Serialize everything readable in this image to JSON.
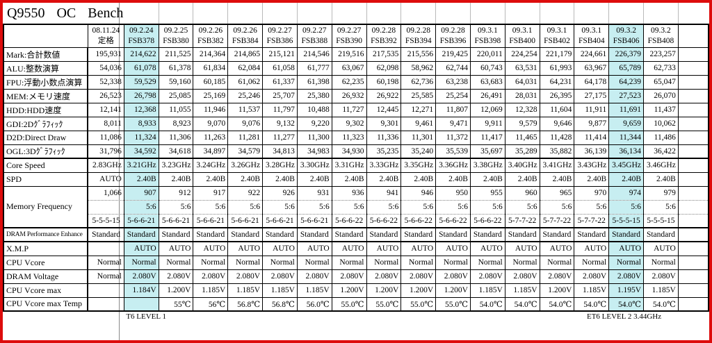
{
  "title": "Q9550 OC Bench",
  "colors": {
    "highlight": "#c7eef1",
    "frame_red": "#dd0c0c",
    "pane_line": "#8a8a8a"
  },
  "highlight_columns": [
    1,
    15
  ],
  "columns": [
    {
      "date": "08.11.24",
      "label": "定格",
      "highlight": false
    },
    {
      "date": "09.2.24",
      "label": "FSB378",
      "highlight": true
    },
    {
      "date": "09.2.25",
      "label": "FSB380",
      "highlight": false
    },
    {
      "date": "09.2.26",
      "label": "FSB382",
      "highlight": false
    },
    {
      "date": "09.2.26",
      "label": "FSB384",
      "highlight": false
    },
    {
      "date": "09.2.27",
      "label": "FSB386",
      "highlight": false
    },
    {
      "date": "09.2.27",
      "label": "FSB388",
      "highlight": false
    },
    {
      "date": "09.2.27",
      "label": "FSB390",
      "highlight": false
    },
    {
      "date": "09.2.28",
      "label": "FSB392",
      "highlight": false
    },
    {
      "date": "09.2.28",
      "label": "FSB394",
      "highlight": false
    },
    {
      "date": "09.2.28",
      "label": "FSB396",
      "highlight": false
    },
    {
      "date": "09.3.1",
      "label": "FSB398",
      "highlight": false
    },
    {
      "date": "09.3.1",
      "label": "FSB400",
      "highlight": false
    },
    {
      "date": "09.3.1",
      "label": "FSB402",
      "highlight": false
    },
    {
      "date": "09.3.1",
      "label": "FSB404",
      "highlight": false
    },
    {
      "date": "09.3.2",
      "label": "FSB406",
      "highlight": true
    },
    {
      "date": "09.3.2",
      "label": "FSB408",
      "highlight": false
    }
  ],
  "rows": [
    {
      "label": "Mark:合計数値",
      "values": [
        "195,931",
        "214,622",
        "211,525",
        "214,364",
        "214,865",
        "215,121",
        "214,546",
        "219,516",
        "217,535",
        "215,556",
        "219,425",
        "220,011",
        "224,254",
        "221,179",
        "224,661",
        "226,379",
        "223,257"
      ]
    },
    {
      "label": "ALU:整数演算",
      "values": [
        "54,036",
        "61,078",
        "61,378",
        "61,834",
        "62,084",
        "61,058",
        "61,777",
        "63,067",
        "62,098",
        "58,962",
        "62,744",
        "60,743",
        "63,531",
        "61,993",
        "63,967",
        "65,789",
        "62,733"
      ]
    },
    {
      "label": "FPU:浮動小数点演算",
      "values": [
        "52,338",
        "59,529",
        "59,160",
        "60,185",
        "61,062",
        "61,337",
        "61,398",
        "62,235",
        "60,198",
        "62,736",
        "63,238",
        "63,683",
        "64,031",
        "64,231",
        "64,178",
        "64,239",
        "65,047"
      ]
    },
    {
      "label": "MEM:メモリ速度",
      "values": [
        "26,523",
        "26,798",
        "25,085",
        "25,169",
        "25,246",
        "25,707",
        "25,380",
        "26,932",
        "26,922",
        "25,585",
        "25,254",
        "26,491",
        "28,031",
        "26,395",
        "27,175",
        "27,523",
        "26,070"
      ]
    },
    {
      "label": "HDD:HDD速度",
      "values": [
        "12,141",
        "12,368",
        "11,055",
        "11,946",
        "11,537",
        "11,797",
        "10,488",
        "11,727",
        "12,445",
        "12,271",
        "11,807",
        "12,069",
        "12,328",
        "11,604",
        "11,911",
        "11,691",
        "11,437"
      ]
    },
    {
      "label": "GDI:2Dｸﾞﾗﾌｨｯｸ",
      "values": [
        "8,011",
        "8,933",
        "8,923",
        "9,070",
        "9,076",
        "9,132",
        "9,220",
        "9,302",
        "9,301",
        "9,461",
        "9,471",
        "9,911",
        "9,579",
        "9,646",
        "9,877",
        "9,659",
        "10,062"
      ]
    },
    {
      "label": "D2D:Direct Draw",
      "values": [
        "11,086",
        "11,324",
        "11,306",
        "11,263",
        "11,281",
        "11,277",
        "11,300",
        "11,323",
        "11,336",
        "11,301",
        "11,372",
        "11,417",
        "11,465",
        "11,428",
        "11,414",
        "11,344",
        "11,486"
      ]
    },
    {
      "label": "OGL:3Dｸﾞﾗﾌｨｯｸ",
      "values": [
        "31,796",
        "34,592",
        "34,618",
        "34,897",
        "34,579",
        "34,813",
        "34,983",
        "34,930",
        "35,235",
        "35,240",
        "35,539",
        "35,697",
        "35,289",
        "35,882",
        "36,139",
        "36,134",
        "36,422"
      ]
    },
    {
      "label": "Core Speed",
      "thick_top": true,
      "values": [
        "2.83GHz",
        "3.21GHz",
        "3.23GHz",
        "3.24GHz",
        "3.26GHz",
        "3.28GHz",
        "3.30GHz",
        "3.31GHz",
        "3.33GHz",
        "3.35GHz",
        "3.36GHz",
        "3.38GHz",
        "3.40GHz",
        "3.41GHz",
        "3.43GHz",
        "3.45GHz",
        "3.46GHz"
      ]
    },
    {
      "label": "SPD",
      "values": [
        "AUTO",
        "2.40B",
        "2.40B",
        "2.40B",
        "2.40B",
        "2.40B",
        "2.40B",
        "2.40B",
        "2.40B",
        "2.40B",
        "2.40B",
        "2.40B",
        "2.40B",
        "2.40B",
        "2.40B",
        "2.40B",
        "2.40B"
      ]
    },
    {
      "label": "Memory Frequency",
      "rowspan": 3,
      "values": [
        "1,066",
        "907",
        "912",
        "917",
        "922",
        "926",
        "931",
        "936",
        "941",
        "946",
        "950",
        "955",
        "960",
        "965",
        "970",
        "974",
        "979"
      ]
    },
    {
      "label": null,
      "dotted_top": true,
      "values": [
        "",
        "5:6",
        "5:6",
        "5:6",
        "5:6",
        "5:6",
        "5:6",
        "5:6",
        "5:6",
        "5:6",
        "5:6",
        "5:6",
        "5:6",
        "5:6",
        "5:6",
        "5:6",
        "5:6"
      ]
    },
    {
      "label": null,
      "dotted_top": true,
      "align": "center",
      "values": [
        "5-5-5-15",
        "5-6-6-21",
        "5-6-6-21",
        "5-6-6-21",
        "5-6-6-21",
        "5-6-6-21",
        "5-6-6-21",
        "5-6-6-22",
        "5-6-6-22",
        "5-6-6-22",
        "5-6-6-22",
        "5-6-6-22",
        "5-7-7-22",
        "5-7-7-22",
        "5-7-7-22",
        "5-5-5-15",
        "5-5-5-15"
      ]
    },
    {
      "label": "DRAM Performance Enhance",
      "thick_top": true,
      "label_class": "small",
      "align": "center",
      "values": [
        "Standard",
        "Standard",
        "Standard",
        "Standard",
        "Standard",
        "Standard",
        "Standard",
        "Standard",
        "Standard",
        "Standard",
        "Standard",
        "Standard",
        "Standard",
        "Standard",
        "Standard",
        "Standard",
        "Standard"
      ]
    },
    {
      "label": "X.M.P",
      "thick_top": true,
      "values": [
        "",
        "AUTO",
        "AUTO",
        "AUTO",
        "AUTO",
        "AUTO",
        "AUTO",
        "AUTO",
        "AUTO",
        "AUTO",
        "AUTO",
        "AUTO",
        "AUTO",
        "AUTO",
        "AUTO",
        "AUTO",
        "AUTO"
      ]
    },
    {
      "label": "CPU Vcore",
      "values": [
        "Normal",
        "Normal",
        "Normal",
        "Normal",
        "Normal",
        "Normal",
        "Normal",
        "Normal",
        "Normal",
        "Normal",
        "Normal",
        "Normal",
        "Normal",
        "Normal",
        "Normal",
        "Normal",
        "Normal"
      ]
    },
    {
      "label": "DRAM Voltage",
      "values": [
        "Normal",
        "2.080V",
        "2.080V",
        "2.080V",
        "2.080V",
        "2.080V",
        "2.080V",
        "2.080V",
        "2.080V",
        "2.080V",
        "2.080V",
        "2.080V",
        "2.080V",
        "2.080V",
        "2.080V",
        "2.080V",
        "2.080V"
      ]
    },
    {
      "label": "CPU Vcore max",
      "values": [
        "",
        "1.184V",
        "1.200V",
        "1.185V",
        "1.185V",
        "1.185V",
        "1.185V",
        "1.200V",
        "1.200V",
        "1.200V",
        "1.200V",
        "1.185V",
        "1.185V",
        "1.200V",
        "1.185V",
        "1.195V",
        "1.185V"
      ]
    },
    {
      "label": "CPU Vcore max Temp",
      "values": [
        "",
        "",
        "55℃",
        "56℃",
        "56.8℃",
        "56.8℃",
        "56.0℃",
        "55.0℃",
        "55.0℃",
        "55.0℃",
        "55.0℃",
        "54.0℃",
        "54.0℃",
        "54.0℃",
        "54.0℃",
        "54.0℃",
        "54.0℃"
      ]
    }
  ],
  "footer": {
    "left_note": "T6 LEVEL 1",
    "right_note": "ET6 LEVEL 2 3.44GHz"
  }
}
